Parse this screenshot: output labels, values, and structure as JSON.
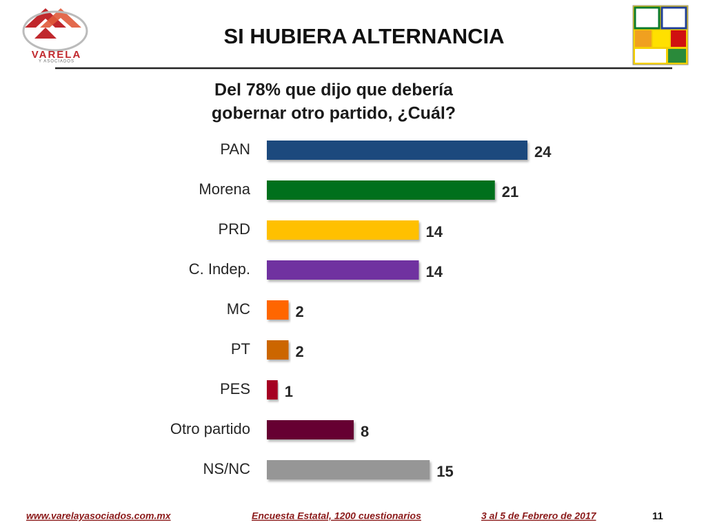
{
  "header": {
    "title": "SI HUBIERA ALTERNANCIA",
    "logo_text": "VARELA",
    "logo_subtext": "Y ASOCIADOS"
  },
  "chart_data": {
    "type": "bar",
    "orientation": "horizontal",
    "title": [
      "Del 78% que dijo que debería",
      "gobernar otro partido, ¿Cuál?"
    ],
    "categories": [
      "PAN",
      "Morena",
      "PRD",
      "C. Indep.",
      "MC",
      "PT",
      "PES",
      "Otro partido",
      "NS/NC"
    ],
    "values": [
      24,
      21,
      14,
      14,
      2,
      2,
      1,
      8,
      15
    ],
    "colors": [
      "#1f497d",
      "#00701a",
      "#ffc000",
      "#7030a0",
      "#ff6600",
      "#cc6600",
      "#a50021",
      "#660033",
      "#969696"
    ]
  },
  "footer": {
    "website": "www.varelayasociados.com.mx",
    "survey": "Encuesta Estatal, 1200 cuestionarios",
    "date": "3 al 5 de Febrero de 2017",
    "page": "11"
  }
}
